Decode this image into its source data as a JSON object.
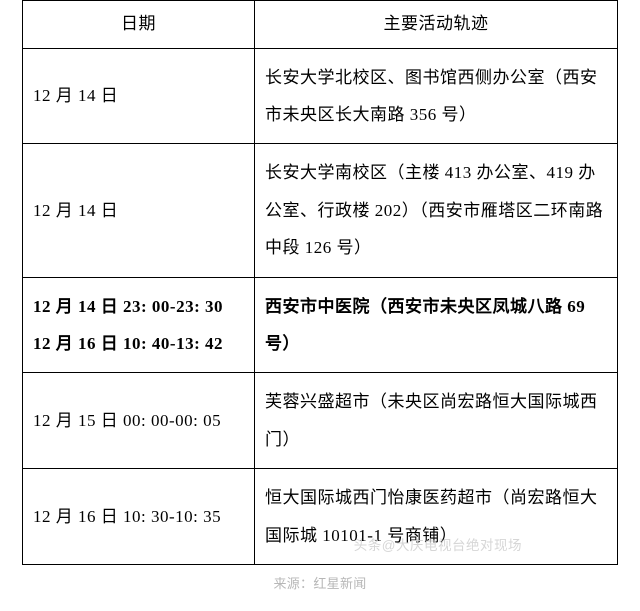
{
  "table": {
    "columns": [
      {
        "label": "日期",
        "width": "39%",
        "align": "center"
      },
      {
        "label": "主要活动轨迹",
        "width": "61%",
        "align": "center"
      }
    ],
    "rows": [
      {
        "date": "12 月 14 日",
        "activity": "长安大学北校区、图书馆西侧办公室（西安市未央区长大南路 356 号）",
        "bold": false
      },
      {
        "date": "12 月 14 日",
        "activity": "长安大学南校区（主楼 413 办公室、419 办公室、行政楼 202）（西安市雁塔区二环南路中段 126 号）",
        "bold": false
      },
      {
        "date": "12 月 14 日 23: 00-23: 30\n12 月 16 日 10: 40-13: 42",
        "activity": "西安市中医院（西安市未央区凤城八路 69 号）",
        "bold": true
      },
      {
        "date": "12 月 15 日 00: 00-00: 05",
        "activity": "芙蓉兴盛超市（未央区尚宏路恒大国际城西门）",
        "bold": false
      },
      {
        "date": "12 月 16 日 10: 30-10: 35",
        "activity": "恒大国际城西门怡康医药超市（尚宏路恒大国际城 10101-1 号商铺）",
        "bold": false
      }
    ],
    "border_color": "#000000",
    "font_family": "SimSun",
    "cell_fontsize": 17,
    "line_height": 2.2,
    "background_color": "#ffffff"
  },
  "watermark": {
    "text": "头条@大庆电视台绝对现场",
    "color": "#cfcfcf",
    "fontsize": 13.5
  },
  "source_line": {
    "text": "来源：红星新闻",
    "color": "#b7b7b7",
    "fontsize": 13
  }
}
